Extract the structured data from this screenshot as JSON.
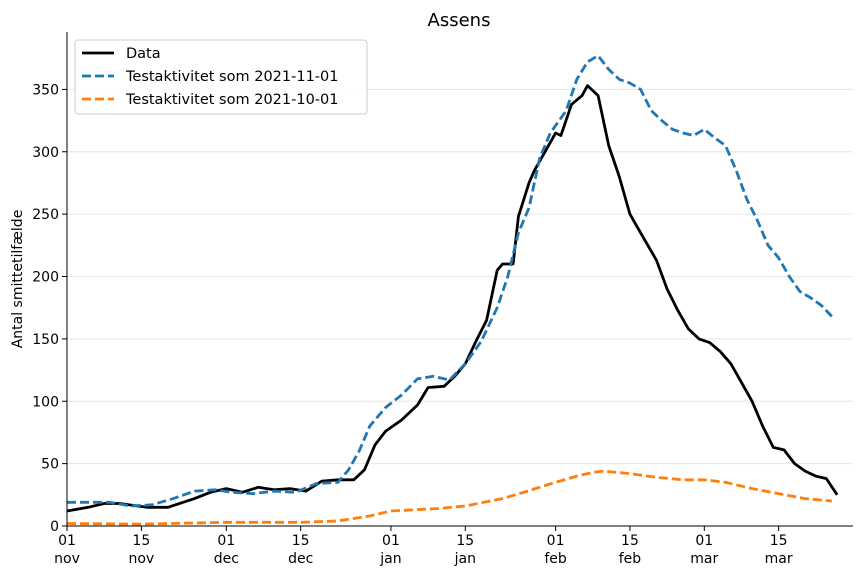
{
  "chart_data": {
    "type": "line",
    "title": "Assens",
    "xlabel": "",
    "ylabel": "Antal smittetilfælde",
    "xlim": [
      "2021-11-01",
      "2022-03-29"
    ],
    "ylim": [
      0,
      396
    ],
    "y_ticks": [
      0,
      50,
      100,
      150,
      200,
      250,
      300,
      350
    ],
    "x_ticks": [
      {
        "date": "2021-11-01",
        "day": "01",
        "month": "nov"
      },
      {
        "date": "2021-11-15",
        "day": "15",
        "month": "nov"
      },
      {
        "date": "2021-12-01",
        "day": "01",
        "month": "dec"
      },
      {
        "date": "2021-12-15",
        "day": "15",
        "month": "dec"
      },
      {
        "date": "2022-01-01",
        "day": "01",
        "month": "jan"
      },
      {
        "date": "2022-01-15",
        "day": "15",
        "month": "jan"
      },
      {
        "date": "2022-02-01",
        "day": "01",
        "month": "feb"
      },
      {
        "date": "2022-02-15",
        "day": "15",
        "month": "feb"
      },
      {
        "date": "2022-03-01",
        "day": "01",
        "month": "mar"
      },
      {
        "date": "2022-03-15",
        "day": "15",
        "month": "mar"
      }
    ],
    "grid": "horizontal",
    "legend_position": "top-left",
    "series": [
      {
        "name": "Data",
        "color": "#000000",
        "style": "solid",
        "points": [
          [
            "2021-11-01",
            12
          ],
          [
            "2021-11-05",
            15
          ],
          [
            "2021-11-08",
            18
          ],
          [
            "2021-11-11",
            18
          ],
          [
            "2021-11-16",
            15
          ],
          [
            "2021-11-20",
            15
          ],
          [
            "2021-11-25",
            22
          ],
          [
            "2021-11-28",
            27
          ],
          [
            "2021-12-01",
            30
          ],
          [
            "2021-12-04",
            27
          ],
          [
            "2021-12-07",
            31
          ],
          [
            "2021-12-10",
            29
          ],
          [
            "2021-12-13",
            30
          ],
          [
            "2021-12-16",
            28
          ],
          [
            "2021-12-19",
            36
          ],
          [
            "2021-12-22",
            37
          ],
          [
            "2021-12-25",
            37
          ],
          [
            "2021-12-27",
            45
          ],
          [
            "2021-12-29",
            65
          ],
          [
            "2021-12-31",
            76
          ],
          [
            "2022-01-03",
            85
          ],
          [
            "2022-01-06",
            97
          ],
          [
            "2022-01-08",
            111
          ],
          [
            "2022-01-11",
            112
          ],
          [
            "2022-01-13",
            120
          ],
          [
            "2022-01-15",
            130
          ],
          [
            "2022-01-17",
            148
          ],
          [
            "2022-01-19",
            165
          ],
          [
            "2022-01-21",
            205
          ],
          [
            "2022-01-22",
            210
          ],
          [
            "2022-01-24",
            210
          ],
          [
            "2022-01-25",
            248
          ],
          [
            "2022-01-27",
            275
          ],
          [
            "2022-01-28",
            285
          ],
          [
            "2022-01-30",
            300
          ],
          [
            "2022-02-01",
            315
          ],
          [
            "2022-02-02",
            313
          ],
          [
            "2022-02-04",
            338
          ],
          [
            "2022-02-06",
            345
          ],
          [
            "2022-02-07",
            353
          ],
          [
            "2022-02-09",
            345
          ],
          [
            "2022-02-11",
            305
          ],
          [
            "2022-02-13",
            280
          ],
          [
            "2022-02-15",
            250
          ],
          [
            "2022-02-17",
            235
          ],
          [
            "2022-02-20",
            213
          ],
          [
            "2022-02-22",
            190
          ],
          [
            "2022-02-24",
            173
          ],
          [
            "2022-02-26",
            158
          ],
          [
            "2022-02-28",
            150
          ],
          [
            "2022-03-02",
            147
          ],
          [
            "2022-03-04",
            140
          ],
          [
            "2022-03-06",
            130
          ],
          [
            "2022-03-08",
            115
          ],
          [
            "2022-03-10",
            100
          ],
          [
            "2022-03-12",
            80
          ],
          [
            "2022-03-14",
            63
          ],
          [
            "2022-03-16",
            61
          ],
          [
            "2022-03-18",
            50
          ],
          [
            "2022-03-20",
            44
          ],
          [
            "2022-03-22",
            40
          ],
          [
            "2022-03-24",
            38
          ],
          [
            "2022-03-26",
            25
          ]
        ]
      },
      {
        "name": "Testaktivitet som 2021-11-01",
        "color": "#1f77b4",
        "style": "dashed",
        "points": [
          [
            "2021-11-01",
            19
          ],
          [
            "2021-11-05",
            19
          ],
          [
            "2021-11-09",
            19
          ],
          [
            "2021-11-13",
            16
          ],
          [
            "2021-11-17",
            17
          ],
          [
            "2021-11-21",
            22
          ],
          [
            "2021-11-25",
            28
          ],
          [
            "2021-11-29",
            29
          ],
          [
            "2021-12-02",
            27
          ],
          [
            "2021-12-06",
            26
          ],
          [
            "2021-12-10",
            28
          ],
          [
            "2021-12-14",
            27
          ],
          [
            "2021-12-18",
            34
          ],
          [
            "2021-12-22",
            35
          ],
          [
            "2021-12-24",
            45
          ],
          [
            "2021-12-26",
            60
          ],
          [
            "2021-12-28",
            80
          ],
          [
            "2021-12-31",
            95
          ],
          [
            "2022-01-03",
            105
          ],
          [
            "2022-01-06",
            118
          ],
          [
            "2022-01-09",
            120
          ],
          [
            "2022-01-12",
            117
          ],
          [
            "2022-01-15",
            130
          ],
          [
            "2022-01-18",
            148
          ],
          [
            "2022-01-21",
            175
          ],
          [
            "2022-01-23",
            200
          ],
          [
            "2022-01-25",
            235
          ],
          [
            "2022-01-27",
            255
          ],
          [
            "2022-01-29",
            295
          ],
          [
            "2022-01-31",
            315
          ],
          [
            "2022-02-03",
            333
          ],
          [
            "2022-02-05",
            358
          ],
          [
            "2022-02-07",
            372
          ],
          [
            "2022-02-09",
            377
          ],
          [
            "2022-02-11",
            366
          ],
          [
            "2022-02-13",
            358
          ],
          [
            "2022-02-15",
            355
          ],
          [
            "2022-02-17",
            350
          ],
          [
            "2022-02-19",
            333
          ],
          [
            "2022-02-21",
            325
          ],
          [
            "2022-02-23",
            318
          ],
          [
            "2022-02-25",
            315
          ],
          [
            "2022-02-27",
            313
          ],
          [
            "2022-03-01",
            318
          ],
          [
            "2022-03-03",
            311
          ],
          [
            "2022-03-05",
            305
          ],
          [
            "2022-03-07",
            285
          ],
          [
            "2022-03-09",
            262
          ],
          [
            "2022-03-11",
            245
          ],
          [
            "2022-03-13",
            225
          ],
          [
            "2022-03-15",
            215
          ],
          [
            "2022-03-17",
            200
          ],
          [
            "2022-03-19",
            188
          ],
          [
            "2022-03-21",
            183
          ],
          [
            "2022-03-23",
            177
          ],
          [
            "2022-03-25",
            168
          ]
        ]
      },
      {
        "name": "Testaktivitet som 2021-10-01",
        "color": "#ff7f0e",
        "style": "dashed",
        "points": [
          [
            "2021-11-01",
            2
          ],
          [
            "2021-11-15",
            1.5
          ],
          [
            "2021-12-01",
            3
          ],
          [
            "2021-12-15",
            3
          ],
          [
            "2021-12-22",
            4
          ],
          [
            "2021-12-28",
            8
          ],
          [
            "2022-01-01",
            12
          ],
          [
            "2022-01-10",
            14
          ],
          [
            "2022-01-15",
            16
          ],
          [
            "2022-01-22",
            22
          ],
          [
            "2022-01-26",
            27
          ],
          [
            "2022-02-01",
            35
          ],
          [
            "2022-02-05",
            40
          ],
          [
            "2022-02-08",
            43
          ],
          [
            "2022-02-10",
            44
          ],
          [
            "2022-02-15",
            42
          ],
          [
            "2022-02-20",
            39
          ],
          [
            "2022-02-25",
            37
          ],
          [
            "2022-03-01",
            37
          ],
          [
            "2022-03-05",
            35
          ],
          [
            "2022-03-10",
            30
          ],
          [
            "2022-03-15",
            26
          ],
          [
            "2022-03-20",
            22
          ],
          [
            "2022-03-25",
            20
          ]
        ]
      }
    ]
  }
}
